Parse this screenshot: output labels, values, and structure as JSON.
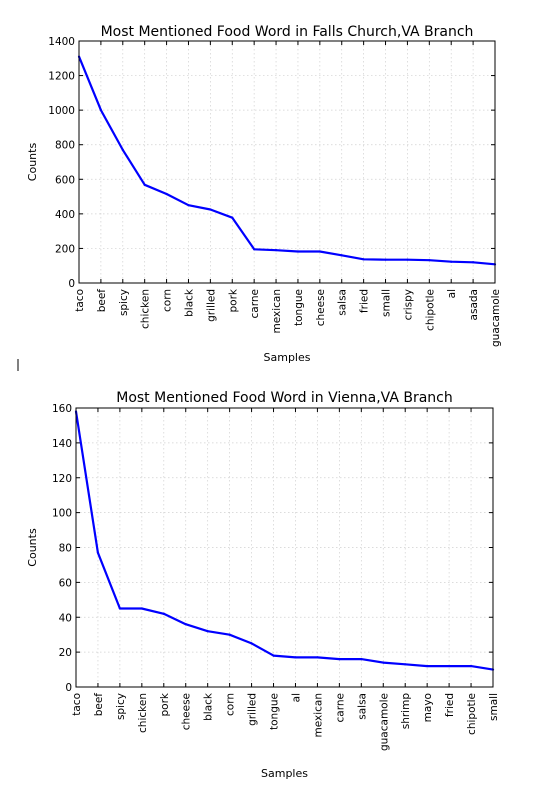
{
  "colors": {
    "line": "#0000ff",
    "grid": "#d0d0d0",
    "frame": "#000000"
  },
  "chart_data": [
    {
      "type": "line",
      "title": "Most Mentioned Food Word in Falls Church,VA Branch",
      "xlabel": "Samples",
      "ylabel": "Counts",
      "ylim": [
        0,
        1400
      ],
      "yticks": [
        0,
        200,
        400,
        600,
        800,
        1000,
        1200,
        1400
      ],
      "grid": true,
      "categories": [
        "taco",
        "beef",
        "spicy",
        "chicken",
        "corn",
        "black",
        "grilled",
        "pork",
        "carne",
        "mexican",
        "tongue",
        "cheese",
        "salsa",
        "fried",
        "small",
        "crispy",
        "chipotle",
        "al",
        "asada",
        "guacamole"
      ],
      "series": [
        {
          "values": [
            1310,
            1000,
            770,
            568,
            515,
            450,
            425,
            378,
            195,
            190,
            182,
            182,
            160,
            137,
            135,
            135,
            132,
            123,
            120,
            108
          ]
        }
      ]
    },
    {
      "type": "line",
      "title": "Most Mentioned Food Word in Vienna,VA Branch",
      "xlabel": "Samples",
      "ylabel": "Counts",
      "ylim": [
        0,
        160
      ],
      "yticks": [
        0,
        20,
        40,
        60,
        80,
        100,
        120,
        140,
        160
      ],
      "grid": true,
      "categories": [
        "taco",
        "beef",
        "spicy",
        "chicken",
        "pork",
        "cheese",
        "black",
        "corn",
        "grilled",
        "tongue",
        "al",
        "mexican",
        "carne",
        "salsa",
        "guacamole",
        "shrimp",
        "mayo",
        "fried",
        "chipotle",
        "small"
      ],
      "series": [
        {
          "values": [
            158,
            77,
            45,
            45,
            42,
            36,
            32,
            30,
            25,
            18,
            17,
            17,
            16,
            16,
            14,
            13,
            12,
            12,
            12,
            10
          ]
        }
      ]
    }
  ]
}
